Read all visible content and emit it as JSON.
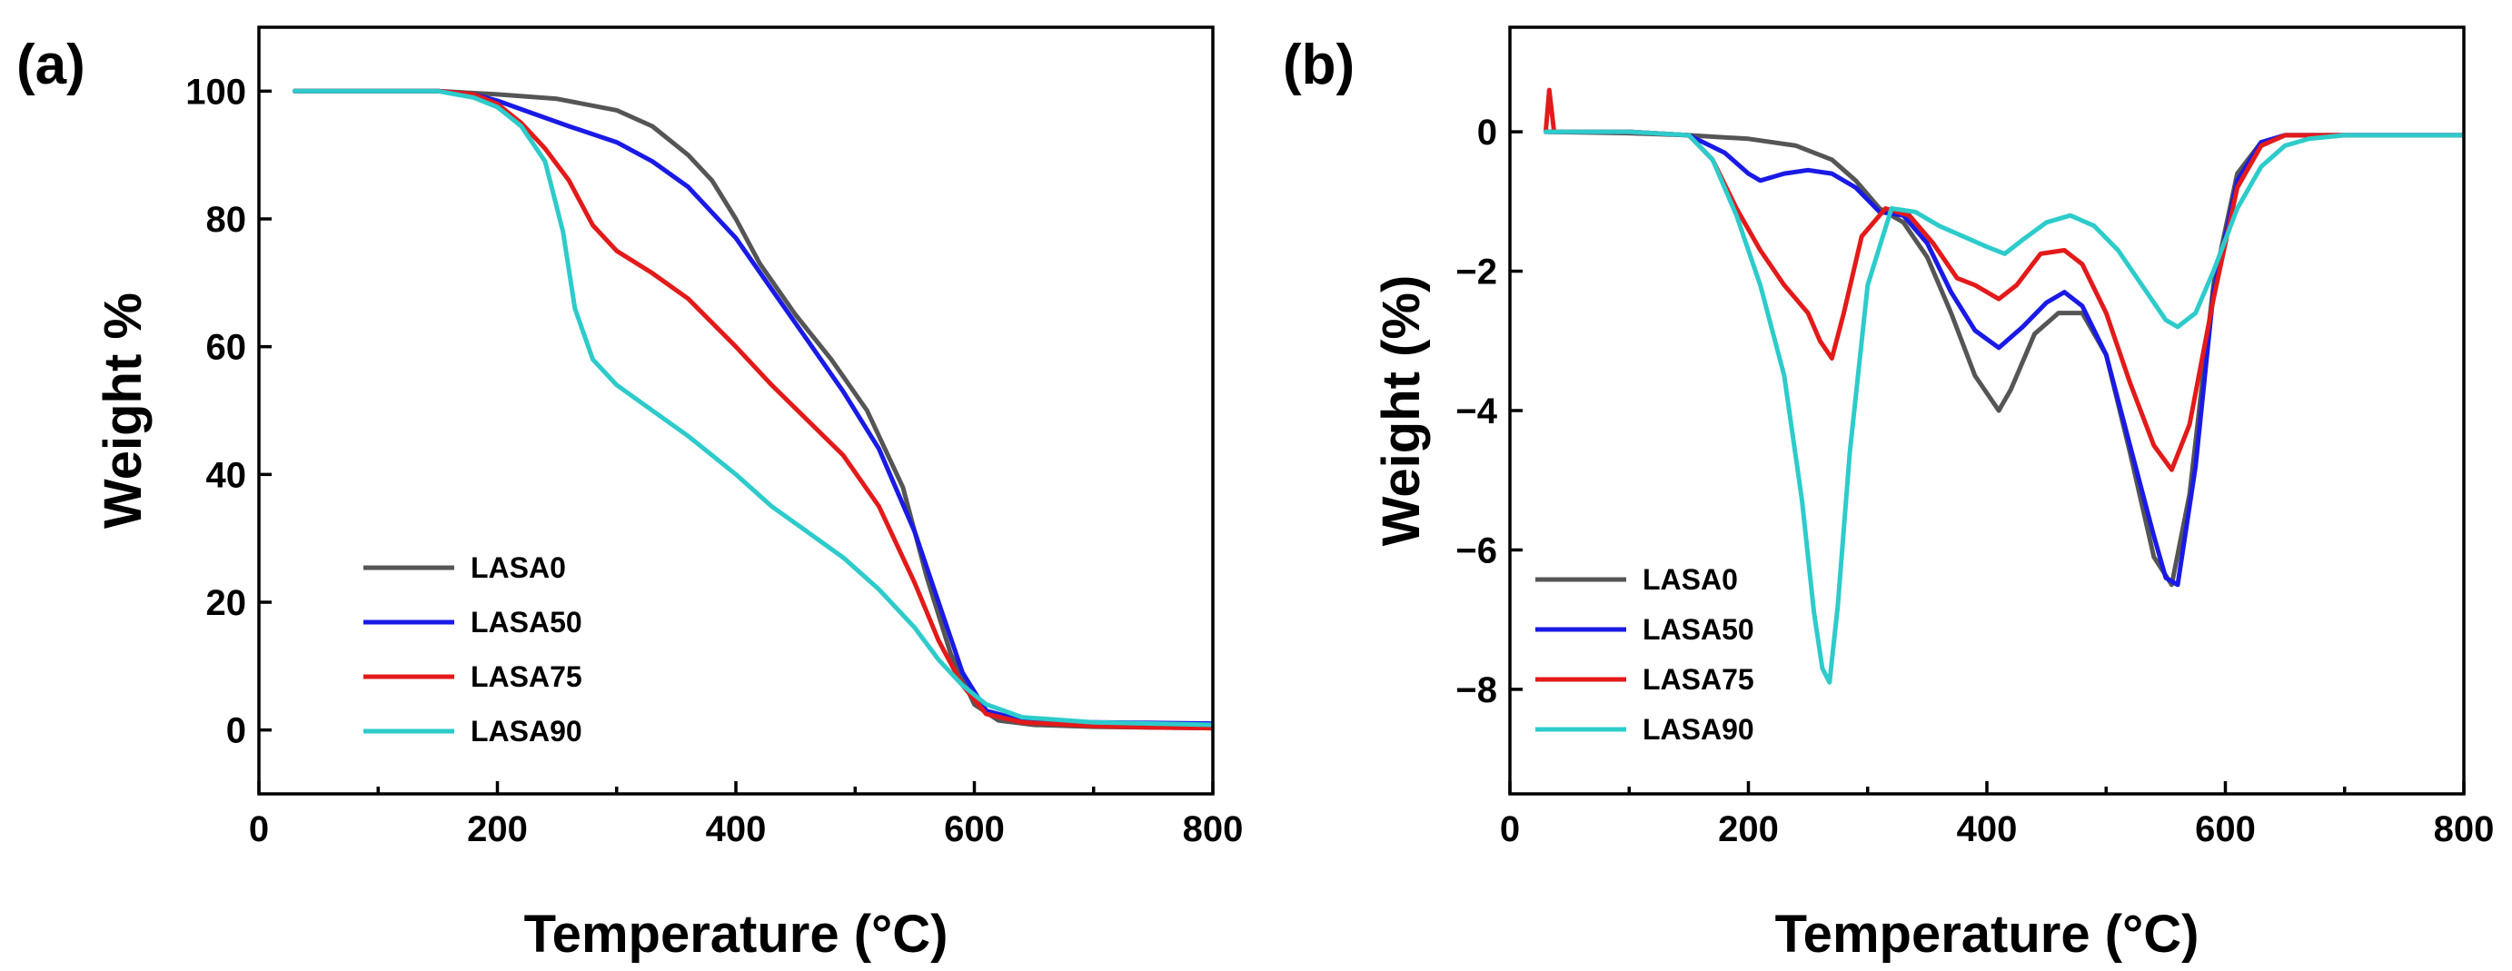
{
  "chart_data": [
    {
      "panel_label": "(a)",
      "type": "line",
      "xlabel": "Temperature (°C)",
      "ylabel": "Weight %",
      "xlim": [
        0,
        800
      ],
      "ylim": [
        -10,
        110
      ],
      "xticks": [
        0,
        200,
        400,
        600,
        800
      ],
      "yticks": [
        0,
        20,
        40,
        60,
        80,
        100
      ],
      "legend_position": "lower-left",
      "series": [
        {
          "name": "LASA0",
          "color": "#555555",
          "x": [
            30,
            100,
            150,
            200,
            250,
            300,
            330,
            360,
            380,
            400,
            420,
            450,
            480,
            510,
            540,
            560,
            580,
            600,
            620,
            650,
            700,
            750,
            800
          ],
          "y": [
            100,
            100,
            100,
            99.5,
            98.8,
            97,
            94.5,
            90,
            86,
            80,
            73,
            65,
            58,
            50,
            38,
            24,
            12,
            4,
            1.5,
            0.8,
            0.5,
            0.4,
            0.3
          ]
        },
        {
          "name": "LASA50",
          "color": "#1a1ae6",
          "x": [
            30,
            100,
            150,
            180,
            200,
            230,
            260,
            300,
            330,
            360,
            400,
            430,
            460,
            490,
            520,
            550,
            570,
            590,
            610,
            640,
            700,
            750,
            800
          ],
          "y": [
            100,
            100,
            100,
            99.5,
            98.5,
            96.5,
            94.5,
            92,
            89,
            85,
            77,
            69,
            61,
            53,
            44,
            31,
            20,
            9,
            3,
            1.5,
            1.2,
            1.1,
            1
          ]
        },
        {
          "name": "LASA75",
          "color": "#e31a1a",
          "x": [
            30,
            100,
            150,
            180,
            200,
            220,
            240,
            260,
            280,
            300,
            330,
            360,
            400,
            430,
            460,
            490,
            520,
            550,
            570,
            590,
            610,
            640,
            700,
            750,
            800
          ],
          "y": [
            100,
            100,
            100,
            99.5,
            98,
            95,
            91,
            86,
            79,
            75,
            71.5,
            67.5,
            60,
            54,
            48.5,
            43,
            35,
            23,
            14,
            7,
            2.5,
            1.2,
            0.6,
            0.4,
            0.3
          ]
        },
        {
          "name": "LASA90",
          "color": "#2ecbcb",
          "x": [
            30,
            100,
            150,
            180,
            200,
            220,
            240,
            255,
            265,
            280,
            300,
            330,
            360,
            400,
            430,
            460,
            490,
            520,
            550,
            570,
            590,
            610,
            640,
            700,
            750,
            800
          ],
          "y": [
            100,
            100,
            100,
            99,
            97.5,
            94.5,
            89,
            78,
            66,
            58,
            54,
            50,
            46,
            40,
            35,
            31,
            27,
            22,
            16,
            11,
            7,
            4,
            2,
            1.2,
            1,
            0.8
          ]
        }
      ]
    },
    {
      "panel_label": "(b)",
      "type": "line",
      "xlabel": "Temperature (°C)",
      "ylabel": "Weight (%)",
      "xlim": [
        0,
        800
      ],
      "ylim": [
        -9.5,
        1.5
      ],
      "xticks": [
        0,
        200,
        400,
        600,
        800
      ],
      "yticks": [
        0,
        -2,
        -4,
        -6,
        -8
      ],
      "ytick_labels": [
        "0",
        "−2",
        "−4",
        "−6",
        "−8"
      ],
      "legend_position": "lower-left",
      "series": [
        {
          "name": "LASA0",
          "color": "#555555",
          "x": [
            30,
            100,
            150,
            200,
            240,
            270,
            290,
            310,
            330,
            350,
            370,
            390,
            410,
            420,
            440,
            460,
            480,
            500,
            520,
            540,
            555,
            570,
            590,
            610,
            630,
            650,
            700,
            800
          ],
          "y": [
            0,
            -0.02,
            -0.05,
            -0.1,
            -0.2,
            -0.4,
            -0.7,
            -1.1,
            -1.3,
            -1.8,
            -2.6,
            -3.5,
            -4,
            -3.7,
            -2.9,
            -2.6,
            -2.6,
            -3.2,
            -4.6,
            -6.1,
            -6.5,
            -5.2,
            -2.2,
            -0.6,
            -0.15,
            -0.05,
            -0.05,
            -0.05
          ]
        },
        {
          "name": "LASA50",
          "color": "#1a1ae6",
          "x": [
            30,
            100,
            150,
            180,
            200,
            210,
            230,
            250,
            270,
            290,
            310,
            330,
            350,
            370,
            390,
            410,
            430,
            450,
            465,
            480,
            500,
            520,
            540,
            550,
            560,
            575,
            590,
            610,
            630,
            650,
            700,
            800
          ],
          "y": [
            0,
            0,
            -0.05,
            -0.3,
            -0.6,
            -0.7,
            -0.6,
            -0.55,
            -0.6,
            -0.8,
            -1.15,
            -1.2,
            -1.6,
            -2.3,
            -2.85,
            -3.1,
            -2.8,
            -2.45,
            -2.3,
            -2.5,
            -3.2,
            -4.5,
            -5.8,
            -6.4,
            -6.5,
            -4.8,
            -2.3,
            -0.7,
            -0.15,
            -0.05,
            -0.05,
            -0.05
          ]
        },
        {
          "name": "LASA75",
          "color": "#e31a1a",
          "x": [
            30,
            33,
            37,
            45,
            100,
            150,
            170,
            190,
            210,
            230,
            250,
            260,
            270,
            280,
            295,
            315,
            335,
            355,
            375,
            390,
            410,
            425,
            445,
            465,
            480,
            500,
            520,
            540,
            555,
            570,
            590,
            610,
            630,
            650,
            700,
            800
          ],
          "y": [
            0,
            0.6,
            0,
            0,
            0,
            -0.05,
            -0.4,
            -1.1,
            -1.7,
            -2.2,
            -2.6,
            -3,
            -3.25,
            -2.6,
            -1.5,
            -1.1,
            -1.2,
            -1.6,
            -2.1,
            -2.2,
            -2.4,
            -2.2,
            -1.75,
            -1.7,
            -1.9,
            -2.6,
            -3.6,
            -4.5,
            -4.85,
            -4.2,
            -2.4,
            -0.8,
            -0.2,
            -0.05,
            -0.05,
            -0.05
          ]
        },
        {
          "name": "LASA90",
          "color": "#2ecbcb",
          "x": [
            30,
            100,
            150,
            170,
            190,
            210,
            230,
            245,
            255,
            262,
            268,
            275,
            285,
            300,
            320,
            340,
            360,
            380,
            400,
            415,
            430,
            450,
            470,
            490,
            510,
            530,
            550,
            560,
            575,
            590,
            610,
            630,
            650,
            670,
            700,
            800
          ],
          "y": [
            0,
            0,
            -0.05,
            -0.4,
            -1.2,
            -2.2,
            -3.5,
            -5.3,
            -6.9,
            -7.7,
            -7.9,
            -6.8,
            -4.6,
            -2.2,
            -1.1,
            -1.15,
            -1.35,
            -1.5,
            -1.65,
            -1.75,
            -1.55,
            -1.3,
            -1.2,
            -1.35,
            -1.7,
            -2.2,
            -2.7,
            -2.8,
            -2.6,
            -2,
            -1.1,
            -0.5,
            -0.2,
            -0.1,
            -0.05,
            -0.05
          ]
        }
      ]
    }
  ]
}
